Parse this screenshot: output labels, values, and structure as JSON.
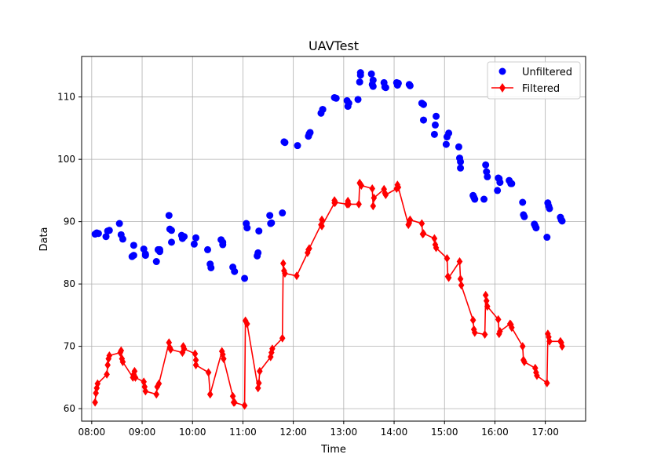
{
  "chart_data": {
    "type": "line",
    "title": "UAVTest",
    "xlabel": "Time",
    "ylabel": "Data",
    "x_unit": "time of day (HH:MM)",
    "xlim": [
      "07:48",
      "17:48"
    ],
    "ylim": [
      58,
      116.5
    ],
    "x_ticks": [
      "08:00",
      "09:00",
      "10:00",
      "11:00",
      "12:00",
      "13:00",
      "14:00",
      "15:00",
      "16:00",
      "17:00"
    ],
    "y_ticks": [
      60,
      70,
      80,
      90,
      100,
      110
    ],
    "grid": true,
    "legend_position": "top-right",
    "series": [
      {
        "name": "Unfiltered",
        "style": "points",
        "color": "#0000ff",
        "points": [
          [
            "08:04",
            88.0
          ],
          [
            "08:06",
            88.2
          ],
          [
            "08:08",
            88.1
          ],
          [
            "08:17",
            87.6
          ],
          [
            "08:19",
            88.5
          ],
          [
            "08:21",
            88.6
          ],
          [
            "08:33",
            89.7
          ],
          [
            "08:35",
            87.9
          ],
          [
            "08:37",
            87.2
          ],
          [
            "08:48",
            84.4
          ],
          [
            "08:50",
            84.6
          ],
          [
            "08:50",
            86.2
          ],
          [
            "09:02",
            85.6
          ],
          [
            "09:04",
            84.8
          ],
          [
            "09:04",
            84.6
          ],
          [
            "09:17",
            83.6
          ],
          [
            "09:19",
            85.5
          ],
          [
            "09:21",
            85.2
          ],
          [
            "09:21",
            85.5
          ],
          [
            "09:32",
            91.0
          ],
          [
            "09:33",
            88.8
          ],
          [
            "09:35",
            88.6
          ],
          [
            "09:35",
            86.7
          ],
          [
            "09:47",
            87.8
          ],
          [
            "09:48",
            87.3
          ],
          [
            "09:50",
            87.6
          ],
          [
            "10:02",
            86.4
          ],
          [
            "10:04",
            87.4
          ],
          [
            "10:18",
            85.5
          ],
          [
            "10:21",
            83.2
          ],
          [
            "10:22",
            82.6
          ],
          [
            "10:34",
            87.1
          ],
          [
            "10:36",
            86.7
          ],
          [
            "10:36",
            86.3
          ],
          [
            "10:48",
            82.7
          ],
          [
            "10:50",
            82.0
          ],
          [
            "11:02",
            80.9
          ],
          [
            "11:04",
            89.7
          ],
          [
            "11:05",
            89.0
          ],
          [
            "11:17",
            84.5
          ],
          [
            "11:18",
            85.0
          ],
          [
            "11:19",
            88.5
          ],
          [
            "11:32",
            91.0
          ],
          [
            "11:33",
            89.7
          ],
          [
            "11:34",
            89.8
          ],
          [
            "11:47",
            91.4
          ],
          [
            "11:49",
            102.8
          ],
          [
            "11:50",
            102.7
          ],
          [
            "12:05",
            102.2
          ],
          [
            "12:18",
            103.7
          ],
          [
            "12:19",
            104.1
          ],
          [
            "12:20",
            104.3
          ],
          [
            "12:33",
            107.4
          ],
          [
            "12:35",
            108.0
          ],
          [
            "12:35",
            108.0
          ],
          [
            "12:49",
            109.9
          ],
          [
            "12:51",
            109.8
          ],
          [
            "13:04",
            109.4
          ],
          [
            "13:05",
            108.5
          ],
          [
            "13:06",
            109.0
          ],
          [
            "13:17",
            109.6
          ],
          [
            "13:19",
            112.4
          ],
          [
            "13:20",
            113.5
          ],
          [
            "13:20",
            113.9
          ],
          [
            "13:33",
            113.7
          ],
          [
            "13:34",
            112.0
          ],
          [
            "13:35",
            111.7
          ],
          [
            "13:35",
            112.7
          ],
          [
            "13:48",
            112.3
          ],
          [
            "13:49",
            111.6
          ],
          [
            "13:50",
            111.5
          ],
          [
            "14:03",
            112.3
          ],
          [
            "14:04",
            111.9
          ],
          [
            "14:05",
            112.2
          ],
          [
            "14:18",
            112.0
          ],
          [
            "14:19",
            111.8
          ],
          [
            "14:33",
            109.0
          ],
          [
            "14:35",
            108.8
          ],
          [
            "14:35",
            106.3
          ],
          [
            "14:48",
            104.0
          ],
          [
            "14:49",
            105.5
          ],
          [
            "14:50",
            106.9
          ],
          [
            "15:02",
            102.4
          ],
          [
            "15:03",
            103.6
          ],
          [
            "15:05",
            104.2
          ],
          [
            "15:17",
            102.0
          ],
          [
            "15:18",
            100.2
          ],
          [
            "15:19",
            99.6
          ],
          [
            "15:19",
            98.6
          ],
          [
            "15:34",
            94.2
          ],
          [
            "15:35",
            93.9
          ],
          [
            "15:36",
            93.6
          ],
          [
            "15:47",
            93.6
          ],
          [
            "15:49",
            99.1
          ],
          [
            "15:50",
            98.0
          ],
          [
            "15:51",
            97.2
          ],
          [
            "16:03",
            95.0
          ],
          [
            "16:04",
            97.0
          ],
          [
            "16:05",
            96.9
          ],
          [
            "16:06",
            96.3
          ],
          [
            "16:17",
            96.6
          ],
          [
            "16:19",
            96.1
          ],
          [
            "16:20",
            96.1
          ],
          [
            "16:33",
            93.1
          ],
          [
            "16:34",
            91.1
          ],
          [
            "16:35",
            90.8
          ],
          [
            "16:47",
            89.6
          ],
          [
            "16:48",
            89.3
          ],
          [
            "16:49",
            89.0
          ],
          [
            "17:02",
            87.5
          ],
          [
            "17:03",
            93.0
          ],
          [
            "17:04",
            92.5
          ],
          [
            "17:05",
            92.1
          ],
          [
            "17:18",
            90.7
          ],
          [
            "17:19",
            90.3
          ],
          [
            "17:20",
            90.1
          ]
        ]
      },
      {
        "name": "Filtered",
        "style": "line-with-diamonds",
        "color": "#ff0000",
        "points": [
          [
            "08:04",
            61.0
          ],
          [
            "08:05",
            62.5
          ],
          [
            "08:06",
            63.3
          ],
          [
            "08:07",
            64.0
          ],
          [
            "08:18",
            65.5
          ],
          [
            "08:19",
            67.0
          ],
          [
            "08:20",
            68.0
          ],
          [
            "08:21",
            68.5
          ],
          [
            "08:34",
            69.0
          ],
          [
            "08:35",
            69.3
          ],
          [
            "08:36",
            68.0
          ],
          [
            "08:37",
            67.5
          ],
          [
            "08:49",
            65.0
          ],
          [
            "08:50",
            65.5
          ],
          [
            "08:51",
            66.0
          ],
          [
            "08:52",
            65.0
          ],
          [
            "09:02",
            64.3
          ],
          [
            "09:03",
            63.5
          ],
          [
            "09:04",
            62.8
          ],
          [
            "09:17",
            62.3
          ],
          [
            "09:18",
            63.5
          ],
          [
            "09:20",
            64.0
          ],
          [
            "09:32",
            70.6
          ],
          [
            "09:33",
            69.8
          ],
          [
            "09:34",
            69.5
          ],
          [
            "09:48",
            69.0
          ],
          [
            "09:49",
            70.0
          ],
          [
            "09:50",
            69.6
          ],
          [
            "10:03",
            68.8
          ],
          [
            "10:04",
            67.8
          ],
          [
            "10:04",
            67.0
          ],
          [
            "10:19",
            65.8
          ],
          [
            "10:21",
            62.3
          ],
          [
            "10:35",
            69.2
          ],
          [
            "10:36",
            68.7
          ],
          [
            "10:37",
            68.0
          ],
          [
            "10:48",
            62.0
          ],
          [
            "10:49",
            61.0
          ],
          [
            "10:50",
            61.0
          ],
          [
            "11:02",
            60.5
          ],
          [
            "11:03",
            74.1
          ],
          [
            "11:05",
            73.6
          ],
          [
            "11:18",
            63.3
          ],
          [
            "11:19",
            64.1
          ],
          [
            "11:20",
            66.0
          ],
          [
            "11:33",
            68.3
          ],
          [
            "11:34",
            69.0
          ],
          [
            "11:35",
            69.6
          ],
          [
            "11:47",
            71.3
          ],
          [
            "11:48",
            83.3
          ],
          [
            "11:49",
            82.1
          ],
          [
            "11:50",
            81.7
          ],
          [
            "12:04",
            81.3
          ],
          [
            "12:17",
            85.0
          ],
          [
            "12:18",
            85.5
          ],
          [
            "12:19",
            85.7
          ],
          [
            "12:33",
            89.5
          ],
          [
            "12:34",
            90.3
          ],
          [
            "12:34",
            89.3
          ],
          [
            "12:49",
            93.0
          ],
          [
            "12:49",
            93.4
          ],
          [
            "12:50",
            93.1
          ],
          [
            "13:04",
            92.8
          ],
          [
            "13:05",
            93.3
          ],
          [
            "13:06",
            92.8
          ],
          [
            "13:18",
            92.8
          ],
          [
            "13:19",
            96.2
          ],
          [
            "13:20",
            96.0
          ],
          [
            "13:21",
            95.8
          ],
          [
            "13:34",
            95.3
          ],
          [
            "13:35",
            92.5
          ],
          [
            "13:36",
            93.8
          ],
          [
            "13:48",
            95.2
          ],
          [
            "13:49",
            94.6
          ],
          [
            "13:50",
            94.3
          ],
          [
            "14:03",
            95.3
          ],
          [
            "14:04",
            95.9
          ],
          [
            "14:05",
            95.5
          ],
          [
            "14:17",
            89.5
          ],
          [
            "14:18",
            89.8
          ],
          [
            "14:19",
            90.3
          ],
          [
            "14:33",
            89.7
          ],
          [
            "14:34",
            88.0
          ],
          [
            "14:35",
            88.1
          ],
          [
            "14:48",
            87.3
          ],
          [
            "14:49",
            86.3
          ],
          [
            "14:50",
            85.8
          ],
          [
            "15:03",
            84.1
          ],
          [
            "15:04",
            81.2
          ],
          [
            "15:05",
            81.0
          ],
          [
            "15:18",
            83.6
          ],
          [
            "15:19",
            80.8
          ],
          [
            "15:20",
            79.8
          ],
          [
            "15:34",
            74.2
          ],
          [
            "15:35",
            72.7
          ],
          [
            "15:36",
            72.2
          ],
          [
            "15:48",
            71.9
          ],
          [
            "15:49",
            78.2
          ],
          [
            "15:50",
            77.3
          ],
          [
            "15:51",
            76.4
          ],
          [
            "16:04",
            74.3
          ],
          [
            "16:05",
            72.0
          ],
          [
            "16:06",
            72.4
          ],
          [
            "16:18",
            73.6
          ],
          [
            "16:19",
            73.5
          ],
          [
            "16:20",
            73.0
          ],
          [
            "16:33",
            70.0
          ],
          [
            "16:34",
            67.8
          ],
          [
            "16:35",
            67.5
          ],
          [
            "16:48",
            66.5
          ],
          [
            "16:49",
            65.8
          ],
          [
            "16:50",
            65.3
          ],
          [
            "17:02",
            64.1
          ],
          [
            "17:03",
            72.0
          ],
          [
            "17:04",
            71.5
          ],
          [
            "17:05",
            70.8
          ],
          [
            "17:18",
            70.8
          ],
          [
            "17:19",
            70.6
          ],
          [
            "17:20",
            70.0
          ]
        ]
      }
    ]
  }
}
